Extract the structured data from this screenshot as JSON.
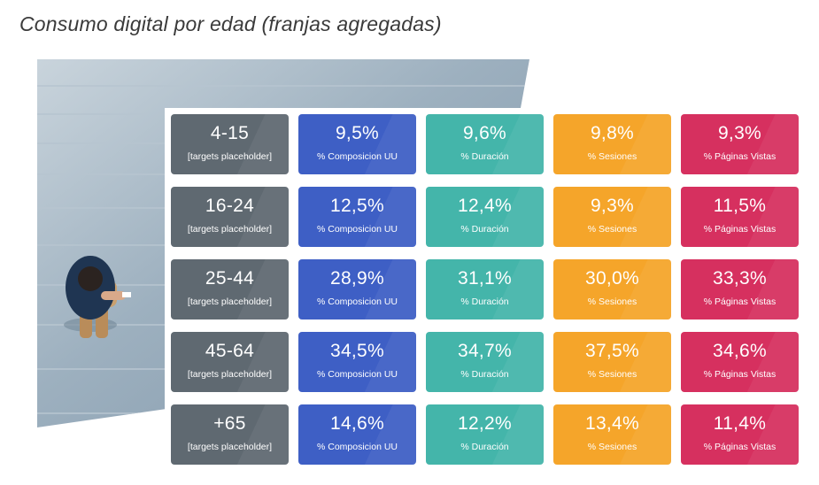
{
  "title": "Consumo digital por edad (franjas agregadas)",
  "colors": {
    "age": "#5f6971",
    "uu": "#3e5fc5",
    "duracion": "#44b5aa",
    "sesiones": "#f5a52a",
    "paginas": "#d6305f"
  },
  "chart_data": {
    "type": "table",
    "title": "Consumo digital por edad (franjas agregadas)",
    "row_sublabel": "[targets placeholder]",
    "columns": [
      {
        "key": "uu",
        "label": "% Composicion UU"
      },
      {
        "key": "duracion",
        "label": "% Duración"
      },
      {
        "key": "sesiones",
        "label": "% Sesiones"
      },
      {
        "key": "paginas",
        "label": "% Páginas Vistas"
      }
    ],
    "rows": [
      {
        "age": "4-15",
        "values": [
          "9,5%",
          "9,6%",
          "9,8%",
          "9,3%"
        ]
      },
      {
        "age": "16-24",
        "values": [
          "12,5%",
          "12,4%",
          "9,3%",
          "11,5%"
        ]
      },
      {
        "age": "25-44",
        "values": [
          "28,9%",
          "31,1%",
          "30,0%",
          "33,3%"
        ]
      },
      {
        "age": "45-64",
        "values": [
          "34,5%",
          "34,7%",
          "37,5%",
          "34,6%"
        ]
      },
      {
        "age": "+65",
        "values": [
          "14,6%",
          "12,2%",
          "13,4%",
          "11,4%"
        ]
      }
    ]
  }
}
